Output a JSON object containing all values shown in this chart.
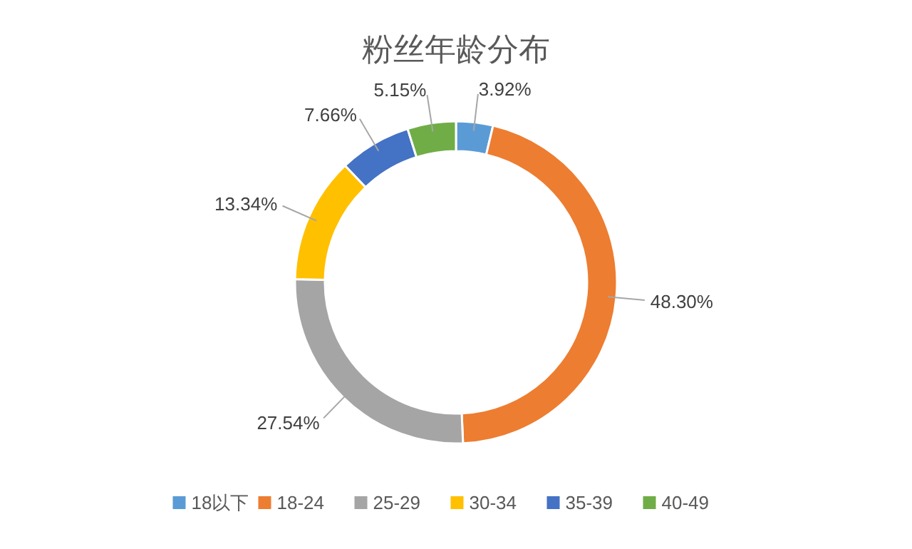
{
  "chart_data": {
    "type": "donut",
    "title": "粉丝年龄分布",
    "categories": [
      "18以下",
      "18-24",
      "25-29",
      "30-34",
      "35-39",
      "40-49"
    ],
    "values": [
      3.92,
      48.3,
      27.54,
      13.34,
      7.66,
      5.15
    ],
    "value_labels": [
      "3.92%",
      "48.30%",
      "27.54%",
      "13.34%",
      "7.66%",
      "5.15%"
    ],
    "colors": [
      "#5b9bd5",
      "#ed7d31",
      "#a5a5a5",
      "#ffc000",
      "#4472c4",
      "#70ad47"
    ],
    "legend": "bottom"
  }
}
